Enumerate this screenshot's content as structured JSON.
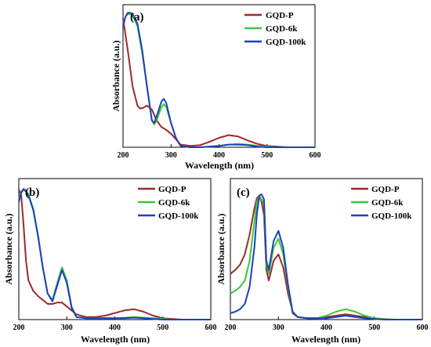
{
  "colors": {
    "GQD-P": "#a0282a",
    "GQD-6k": "#33cc33",
    "GQD-100k": "#1f3fc0"
  },
  "chart_data": [
    {
      "type": "line",
      "panel_label": "(a)",
      "xlabel": "Wavelength (nm)",
      "ylabel": "Absorbance (a.u.)",
      "xlim": [
        200,
        600
      ],
      "xticks": [
        "200",
        "300",
        "400",
        "500",
        "600"
      ],
      "legend_position": "top-right",
      "series": [
        {
          "name": "GQD-P",
          "x": [
            200,
            210,
            220,
            230,
            235,
            240,
            250,
            260,
            270,
            280,
            290,
            300,
            310,
            320,
            340,
            360,
            380,
            400,
            420,
            440,
            460,
            480,
            500,
            520,
            540,
            560,
            580,
            600
          ],
          "y": [
            0.96,
            0.72,
            0.45,
            0.31,
            0.29,
            0.29,
            0.31,
            0.28,
            0.2,
            0.15,
            0.13,
            0.1,
            0.06,
            0.02,
            0.01,
            0.015,
            0.04,
            0.07,
            0.09,
            0.08,
            0.05,
            0.025,
            0.01,
            0.005,
            0,
            0,
            0,
            0
          ]
        },
        {
          "name": "GQD-6k",
          "x": [
            200,
            205,
            210,
            215,
            220,
            230,
            240,
            250,
            260,
            265,
            270,
            280,
            285,
            290,
            300,
            310,
            320,
            340,
            360,
            380,
            400,
            420,
            440,
            460,
            480,
            500,
            520,
            540,
            560,
            580,
            600
          ],
          "y": [
            0.9,
            0.97,
            0.99,
            0.99,
            0.98,
            0.9,
            0.7,
            0.45,
            0.2,
            0.17,
            0.2,
            0.3,
            0.32,
            0.3,
            0.18,
            0.07,
            0.01,
            0,
            0,
            0.005,
            0.01,
            0.02,
            0.025,
            0.02,
            0.01,
            0.005,
            0,
            0,
            0,
            0,
            0
          ]
        },
        {
          "name": "GQD-100k",
          "x": [
            200,
            205,
            210,
            215,
            220,
            230,
            240,
            250,
            260,
            265,
            270,
            280,
            285,
            290,
            300,
            310,
            320,
            340,
            360,
            380,
            400,
            420,
            440,
            460,
            480,
            500,
            520,
            540,
            560,
            580,
            600
          ],
          "y": [
            0.9,
            0.97,
            1.0,
            1.0,
            0.99,
            0.92,
            0.72,
            0.45,
            0.2,
            0.18,
            0.23,
            0.34,
            0.36,
            0.33,
            0.18,
            0.07,
            0.01,
            0,
            0,
            0.005,
            0.01,
            0.02,
            0.02,
            0.015,
            0.005,
            0,
            0,
            0,
            0,
            0,
            0
          ]
        }
      ]
    },
    {
      "type": "line",
      "panel_label": "(b)",
      "xlabel": "Wavelength (nm)",
      "ylabel": "Absorbance (a.u.)",
      "xlim": [
        200,
        600
      ],
      "xticks": [
        "200",
        "300",
        "400",
        "500",
        "600"
      ],
      "legend_position": "top-right",
      "series": [
        {
          "name": "GQD-P",
          "x": [
            200,
            205,
            210,
            215,
            220,
            230,
            240,
            250,
            260,
            270,
            280,
            290,
            300,
            320,
            340,
            360,
            380,
            400,
            420,
            440,
            460,
            480,
            500,
            520,
            540,
            560,
            580,
            600
          ],
          "y": [
            1.0,
            0.95,
            0.72,
            0.45,
            0.3,
            0.22,
            0.18,
            0.15,
            0.12,
            0.12,
            0.13,
            0.13,
            0.1,
            0.04,
            0.02,
            0.02,
            0.03,
            0.05,
            0.07,
            0.08,
            0.06,
            0.03,
            0.01,
            0.005,
            0,
            0,
            0,
            0
          ]
        },
        {
          "name": "GQD-6k",
          "x": [
            200,
            205,
            210,
            215,
            220,
            230,
            240,
            250,
            260,
            270,
            280,
            290,
            300,
            310,
            320,
            340,
            360,
            380,
            400,
            420,
            440,
            460,
            480,
            500,
            520,
            540,
            560,
            580,
            600
          ],
          "y": [
            0.92,
            0.98,
            1.0,
            0.99,
            0.96,
            0.85,
            0.65,
            0.4,
            0.2,
            0.15,
            0.28,
            0.4,
            0.3,
            0.1,
            0.02,
            0.01,
            0.01,
            0.01,
            0.01,
            0.015,
            0.02,
            0.015,
            0.01,
            0.005,
            0,
            0,
            0,
            0,
            0
          ]
        },
        {
          "name": "GQD-100k",
          "x": [
            200,
            205,
            210,
            215,
            220,
            230,
            240,
            250,
            260,
            270,
            280,
            290,
            300,
            310,
            320,
            340,
            360,
            380,
            400,
            420,
            440,
            460,
            480,
            500,
            520,
            540,
            560,
            580,
            600
          ],
          "y": [
            0.9,
            0.97,
            1.0,
            0.98,
            0.95,
            0.84,
            0.64,
            0.4,
            0.2,
            0.14,
            0.26,
            0.38,
            0.28,
            0.09,
            0.02,
            0.01,
            0.01,
            0.01,
            0.01,
            0.01,
            0.015,
            0.01,
            0.005,
            0,
            0,
            0,
            0,
            0,
            0
          ]
        }
      ]
    },
    {
      "type": "line",
      "panel_label": "(c)",
      "xlabel": "Wavelength (nm)",
      "ylabel": "Absorbance (a.u.)",
      "xlim": [
        200,
        600
      ],
      "xticks": [
        "200",
        "300",
        "400",
        "500",
        "600"
      ],
      "legend_position": "top-right",
      "series": [
        {
          "name": "GQD-P",
          "x": [
            200,
            210,
            220,
            230,
            240,
            250,
            255,
            260,
            265,
            270,
            275,
            280,
            290,
            300,
            310,
            320,
            330,
            340,
            360,
            380,
            400,
            420,
            440,
            460,
            480,
            500,
            520,
            540,
            560,
            580,
            600
          ],
          "y": [
            0.35,
            0.38,
            0.42,
            0.5,
            0.65,
            0.85,
            0.93,
            0.95,
            0.9,
            0.8,
            0.38,
            0.3,
            0.45,
            0.5,
            0.4,
            0.2,
            0.06,
            0.02,
            0.01,
            0.01,
            0.02,
            0.03,
            0.04,
            0.03,
            0.02,
            0.01,
            0.005,
            0,
            0,
            0,
            0
          ]
        },
        {
          "name": "GQD-6k",
          "x": [
            200,
            210,
            220,
            230,
            240,
            250,
            255,
            260,
            265,
            270,
            275,
            280,
            290,
            300,
            310,
            320,
            330,
            340,
            360,
            380,
            400,
            420,
            440,
            460,
            480,
            500,
            520,
            540,
            560,
            580,
            600
          ],
          "y": [
            0.2,
            0.22,
            0.25,
            0.3,
            0.45,
            0.75,
            0.9,
            0.95,
            0.92,
            0.88,
            0.42,
            0.35,
            0.55,
            0.62,
            0.5,
            0.25,
            0.05,
            0.02,
            0.01,
            0.01,
            0.03,
            0.06,
            0.08,
            0.06,
            0.03,
            0.01,
            0.005,
            0,
            0,
            0,
            0
          ]
        },
        {
          "name": "GQD-100k",
          "x": [
            200,
            210,
            220,
            230,
            240,
            250,
            255,
            260,
            265,
            270,
            275,
            280,
            290,
            300,
            310,
            320,
            330,
            340,
            360,
            380,
            400,
            420,
            440,
            460,
            480,
            500,
            520,
            540,
            560,
            580,
            600
          ],
          "y": [
            0.05,
            0.06,
            0.08,
            0.12,
            0.25,
            0.55,
            0.8,
            0.95,
            0.96,
            0.92,
            0.45,
            0.38,
            0.6,
            0.68,
            0.55,
            0.27,
            0.05,
            0.02,
            0.01,
            0.01,
            0.01,
            0.02,
            0.03,
            0.02,
            0.01,
            0.005,
            0,
            0,
            0,
            0,
            0
          ]
        }
      ]
    }
  ]
}
